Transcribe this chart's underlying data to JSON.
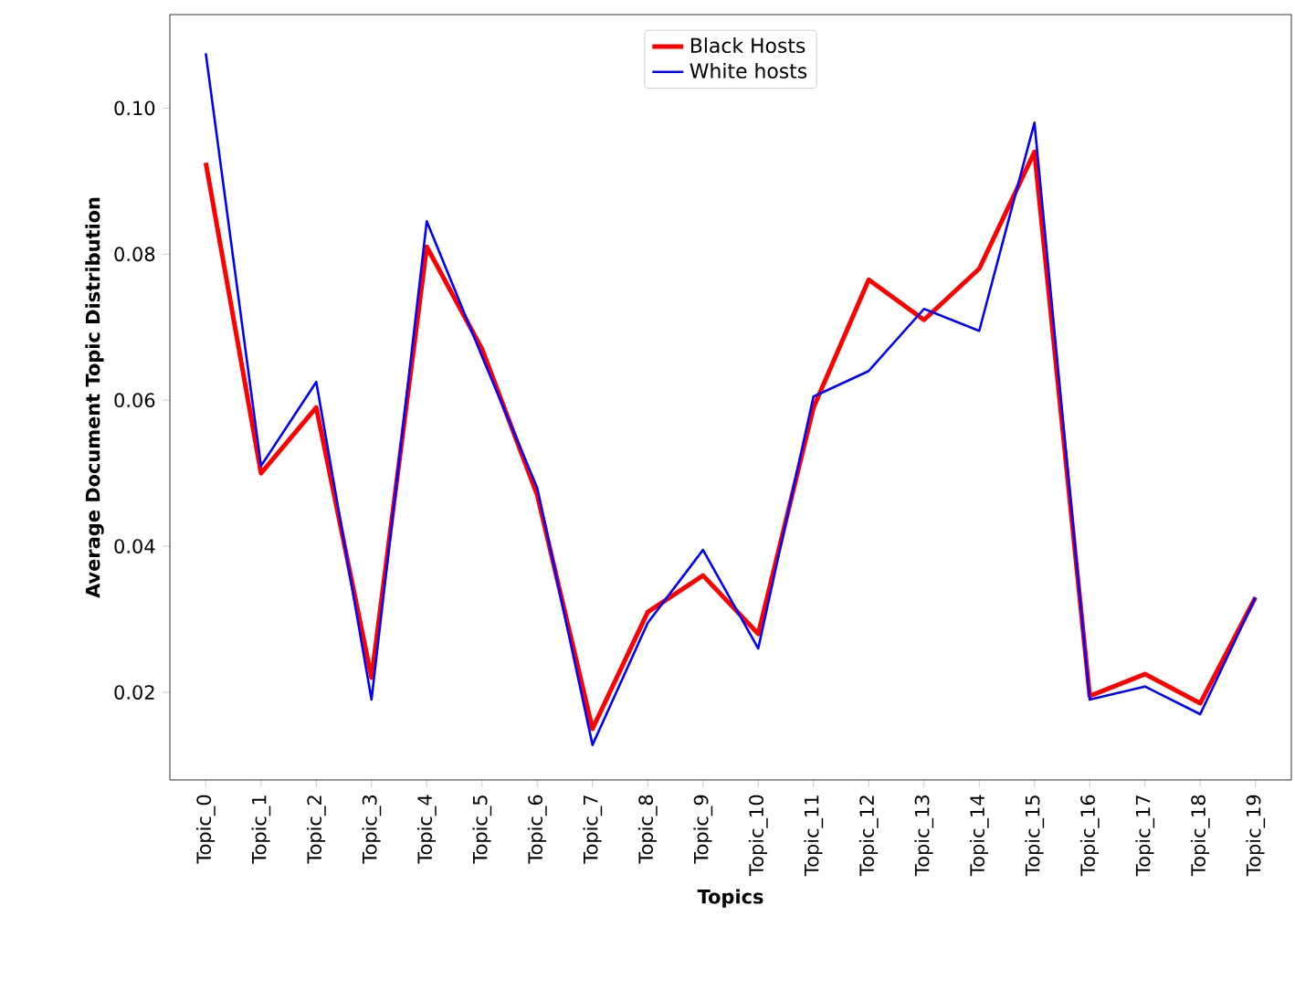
{
  "chart_data": {
    "type": "line",
    "xlabel": "Topics",
    "ylabel": "Average Document Topic Distribution",
    "categories": [
      "Topic_0",
      "Topic_1",
      "Topic_2",
      "Topic_3",
      "Topic_4",
      "Topic_5",
      "Topic_6",
      "Topic_7",
      "Topic_8",
      "Topic_9",
      "Topic_10",
      "Topic_11",
      "Topic_12",
      "Topic_13",
      "Topic_14",
      "Topic_15",
      "Topic_16",
      "Topic_17",
      "Topic_18",
      "Topic_19"
    ],
    "series": [
      {
        "name": "Black Hosts",
        "color": "#ff0000",
        "values": [
          0.0925,
          0.05,
          0.059,
          0.022,
          0.081,
          0.067,
          0.047,
          0.015,
          0.031,
          0.036,
          0.028,
          0.059,
          0.0765,
          0.071,
          0.078,
          0.094,
          0.0195,
          0.0225,
          0.0185,
          0.033
        ]
      },
      {
        "name": "White hosts",
        "color": "#0000ff",
        "values": [
          0.1075,
          0.051,
          0.0625,
          0.019,
          0.0845,
          0.066,
          0.048,
          0.0128,
          0.0295,
          0.0395,
          0.026,
          0.0605,
          0.064,
          0.0725,
          0.0695,
          0.098,
          0.019,
          0.0208,
          0.017,
          0.033
        ]
      }
    ],
    "ylim": [
      0.008,
      0.1128
    ],
    "yticks": [
      0.02,
      0.04,
      0.06,
      0.08,
      {
        "value": 0.1,
        "label": "0.10"
      }
    ],
    "legend": "top",
    "marker": "none",
    "line_style": "solid"
  }
}
